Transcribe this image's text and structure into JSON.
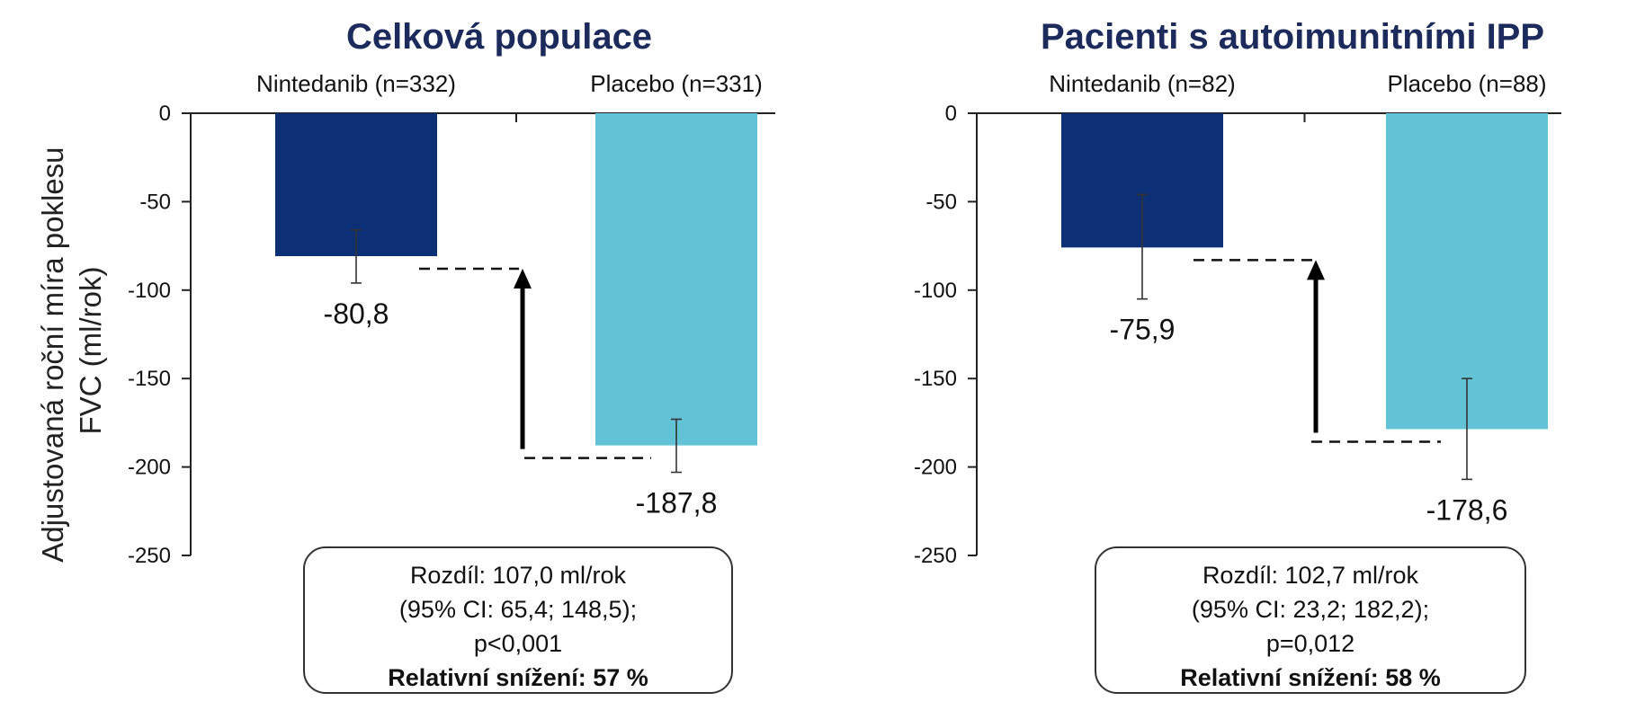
{
  "y_axis_label_line1": "Adjustovaná roční míra poklesu",
  "y_axis_label_line2": "FVC (ml/rok)",
  "colors": {
    "nintedanib": "#0d2f75",
    "placebo": "#62c3d6",
    "title": "#1c2a5c"
  },
  "chart_data": [
    {
      "type": "bar",
      "title": "Celková populace",
      "categories": [
        "Nintedanib (n=332)",
        "Placebo (n=331)"
      ],
      "values": [
        -80.8,
        -187.8
      ],
      "value_labels": [
        "-80,8",
        "-187,8"
      ],
      "error_low": [
        -96,
        -203
      ],
      "error_high": [
        -66,
        -173
      ],
      "ylim": [
        -250,
        0
      ],
      "yticks": [
        0,
        -50,
        -100,
        -150,
        -200,
        -250
      ],
      "ytick_labels": [
        "0",
        "-50",
        "-100",
        "-150",
        "-200",
        "-250"
      ],
      "grid": false,
      "annotation": {
        "line1": "Rozdíl:  107,0 ml/rok",
        "line2": "(95% CI: 65,4; 148,5);",
        "line3": "p<0,001",
        "line4": "Relativní snížení: 57 %"
      }
    },
    {
      "type": "bar",
      "title": "Pacienti s autoimunitními  IPP",
      "categories": [
        "Nintedanib (n=82)",
        "Placebo (n=88)"
      ],
      "values": [
        -75.9,
        -178.6
      ],
      "value_labels": [
        "-75,9",
        "-178,6"
      ],
      "error_low": [
        -105,
        -207
      ],
      "error_high": [
        -46,
        -150
      ],
      "ylim": [
        -250,
        0
      ],
      "yticks": [
        0,
        -50,
        -100,
        -150,
        -200,
        -250
      ],
      "ytick_labels": [
        "0",
        "-50",
        "-100",
        "-150",
        "-200",
        "-250"
      ],
      "grid": false,
      "annotation": {
        "line1": "Rozdíl:  102,7 ml/rok",
        "line2": "(95% CI: 23,2; 182,2);",
        "line3": "p=0,012",
        "line4": "Relativní snížení: 58 %"
      }
    }
  ]
}
